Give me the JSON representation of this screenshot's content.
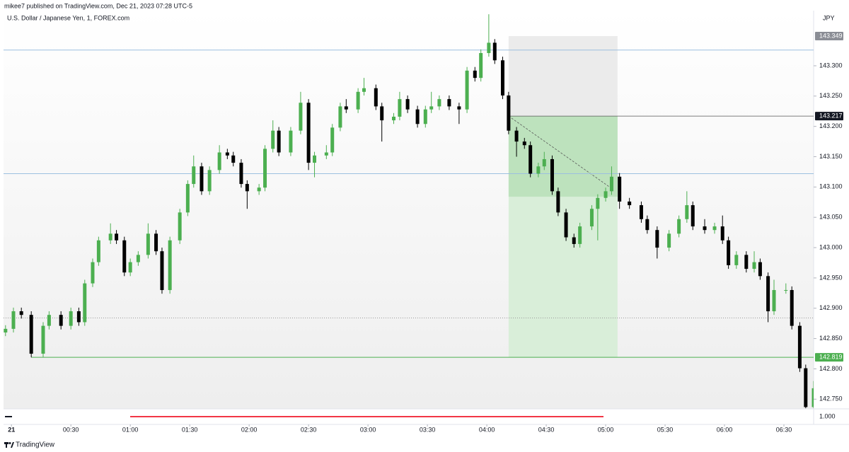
{
  "header": {
    "publisher": "mikee7 published on TradingView.com, Dec 21, 2023 07:28 UTC-5",
    "footer_brand": "TradingView"
  },
  "chart_data": {
    "type": "candlestick",
    "symbol": "U.S. Dollar / Japanese Yen, 1, FOREX.com",
    "currency": "JPY",
    "up_color": "#4caf50",
    "down_color": "#000000",
    "x": [
      -3,
      1,
      5,
      10,
      16,
      19,
      25,
      30,
      34,
      37,
      41,
      44,
      50,
      53,
      57,
      60,
      64,
      69,
      73,
      76,
      80,
      85,
      89,
      92,
      96,
      100,
      105,
      109,
      112,
      116,
      119,
      125,
      128,
      132,
      135,
      141,
      146,
      150,
      153,
      159,
      162,
      166,
      169,
      175,
      178,
      184,
      187,
      193,
      196,
      200,
      205,
      209,
      212,
      216,
      221,
      226,
      230,
      234,
      237,
      241,
      244,
      248,
      251,
      255,
      259,
      262,
      266,
      269,
      273,
      276,
      280,
      284,
      287,
      293,
      296,
      300,
      303,
      307,
      312,
      318,
      321,
      326,
      332,
      337,
      341,
      344,
      350,
      355,
      359,
      362,
      366,
      371,
      375,
      378,
      382,
      385,
      391,
      394,
      398,
      401,
      405
    ],
    "open": [
      142.86,
      142.866,
      142.895,
      142.889,
      142.825,
      142.871,
      142.889,
      142.871,
      142.895,
      142.877,
      142.941,
      142.976,
      143.012,
      143.023,
      143.012,
      142.959,
      142.976,
      142.988,
      143.023,
      142.994,
      142.93,
      143.012,
      143.058,
      143.105,
      143.134,
      143.093,
      143.128,
      143.157,
      143.152,
      143.14,
      143.105,
      143.093,
      143.099,
      143.163,
      143.193,
      143.157,
      143.193,
      143.239,
      143.14,
      143.152,
      143.157,
      143.198,
      143.233,
      143.228,
      143.257,
      143.263,
      143.233,
      143.21,
      143.216,
      143.245,
      143.228,
      143.204,
      143.228,
      143.233,
      143.245,
      143.233,
      143.228,
      143.292,
      143.28,
      143.321,
      143.338,
      143.309,
      143.251,
      143.193,
      143.175,
      143.169,
      143.122,
      143.134,
      143.146,
      143.093,
      143.058,
      143.017,
      143.006,
      143.035,
      143.064,
      143.082,
      143.093,
      143.117,
      143.076,
      143.07,
      143.047,
      143.029,
      143.0,
      143.023,
      143.047,
      143.07,
      143.035,
      143.029,
      143.035,
      143.012,
      142.971,
      142.988,
      142.965,
      142.976,
      142.953,
      142.895,
      142.93,
      142.93,
      142.871,
      142.801,
      142.737
    ],
    "high": [
      142.872,
      142.901,
      142.901,
      142.895,
      142.877,
      142.895,
      142.895,
      142.901,
      142.901,
      142.947,
      142.982,
      143.018,
      143.04,
      143.029,
      143.018,
      142.982,
      142.994,
      143.04,
      143.029,
      143.0,
      143.018,
      143.064,
      143.111,
      143.152,
      143.14,
      143.134,
      143.169,
      143.163,
      143.158,
      143.146,
      143.111,
      143.105,
      143.169,
      143.21,
      143.199,
      143.199,
      143.257,
      143.245,
      143.158,
      143.169,
      143.204,
      143.239,
      143.245,
      143.263,
      143.28,
      143.269,
      143.239,
      143.222,
      143.257,
      143.251,
      143.234,
      143.234,
      143.257,
      143.251,
      143.251,
      143.239,
      143.298,
      143.298,
      143.327,
      143.385,
      143.344,
      143.315,
      143.257,
      143.199,
      143.181,
      143.175,
      143.14,
      143.158,
      143.152,
      143.099,
      143.064,
      143.023,
      143.041,
      143.07,
      143.088,
      143.099,
      143.134,
      143.123,
      143.082,
      143.076,
      143.053,
      143.035,
      143.029,
      143.053,
      143.093,
      143.076,
      143.047,
      143.041,
      143.053,
      143.018,
      142.994,
      142.994,
      142.994,
      142.982,
      142.959,
      142.947,
      142.941,
      142.936,
      142.877,
      142.807,
      142.78
    ],
    "low": [
      142.854,
      142.86,
      142.883,
      142.819,
      142.819,
      142.865,
      142.865,
      142.865,
      142.871,
      142.871,
      142.935,
      142.97,
      143.006,
      143.006,
      142.953,
      142.953,
      142.97,
      142.982,
      142.988,
      142.924,
      142.924,
      143.006,
      143.052,
      143.099,
      143.087,
      143.087,
      143.122,
      143.146,
      143.134,
      143.099,
      143.064,
      143.087,
      143.093,
      143.157,
      143.151,
      143.151,
      143.187,
      143.128,
      143.116,
      143.146,
      143.151,
      143.192,
      143.222,
      143.222,
      143.251,
      143.227,
      143.175,
      143.204,
      143.21,
      143.222,
      143.198,
      143.198,
      143.222,
      143.227,
      143.227,
      143.204,
      143.222,
      143.274,
      143.274,
      143.315,
      143.303,
      143.245,
      143.187,
      143.15,
      143.163,
      143.116,
      143.116,
      143.128,
      143.087,
      143.052,
      143.011,
      143.0,
      143.0,
      143.029,
      143.012,
      143.076,
      143.087,
      143.064,
      143.064,
      143.041,
      143.023,
      142.982,
      142.994,
      143.017,
      143.041,
      143.029,
      143.023,
      143.023,
      143.006,
      142.965,
      142.965,
      142.959,
      142.959,
      142.947,
      142.877,
      142.889,
      142.924,
      142.865,
      142.795,
      142.735,
      142.735
    ],
    "close": [
      142.866,
      142.895,
      142.889,
      142.825,
      142.871,
      142.889,
      142.871,
      142.895,
      142.877,
      142.941,
      142.976,
      143.012,
      143.023,
      143.012,
      142.959,
      142.976,
      142.988,
      143.023,
      142.994,
      142.93,
      143.012,
      143.058,
      143.105,
      143.134,
      143.093,
      143.128,
      143.157,
      143.152,
      143.14,
      143.105,
      143.093,
      143.099,
      143.163,
      143.193,
      143.157,
      143.193,
      143.239,
      143.14,
      143.152,
      143.157,
      143.198,
      143.233,
      143.228,
      143.257,
      143.263,
      143.233,
      143.21,
      143.216,
      143.245,
      143.228,
      143.204,
      143.228,
      143.233,
      143.245,
      143.233,
      143.228,
      143.292,
      143.28,
      143.321,
      143.338,
      143.309,
      143.251,
      143.193,
      143.175,
      143.169,
      143.122,
      143.134,
      143.146,
      143.093,
      143.058,
      143.017,
      143.006,
      143.035,
      143.064,
      143.082,
      143.093,
      143.117,
      143.076,
      143.07,
      143.047,
      143.029,
      143.0,
      143.023,
      143.047,
      143.07,
      143.035,
      143.029,
      143.035,
      143.012,
      142.971,
      142.988,
      142.965,
      142.976,
      142.953,
      142.895,
      142.93,
      142.93,
      142.871,
      142.801,
      142.737,
      142.768
    ],
    "xlim": [
      -4,
      405
    ],
    "ylim": [
      142.734,
      143.391
    ],
    "xticks": [
      {
        "value": 0,
        "label": "21"
      },
      {
        "value": 30,
        "label": "00:30"
      },
      {
        "value": 60,
        "label": "01:00"
      },
      {
        "value": 90,
        "label": "01:30"
      },
      {
        "value": 120,
        "label": "02:00"
      },
      {
        "value": 150,
        "label": "02:30"
      },
      {
        "value": 180,
        "label": "03:00"
      },
      {
        "value": 210,
        "label": "03:30"
      },
      {
        "value": 240,
        "label": "04:00"
      },
      {
        "value": 270,
        "label": "04:30"
      },
      {
        "value": 300,
        "label": "05:00"
      },
      {
        "value": 330,
        "label": "05:30"
      },
      {
        "value": 360,
        "label": "06:00"
      },
      {
        "value": 390,
        "label": "06:30"
      }
    ],
    "yticks": [
      {
        "value": 142.75,
        "label": "142.750"
      },
      {
        "value": 142.8,
        "label": "142.800"
      },
      {
        "value": 142.85,
        "label": "142.850"
      },
      {
        "value": 142.9,
        "label": "142.900"
      },
      {
        "value": 142.95,
        "label": "142.950"
      },
      {
        "value": 143.0,
        "label": "143.000"
      },
      {
        "value": 143.05,
        "label": "143.050"
      },
      {
        "value": 143.1,
        "label": "143.100"
      },
      {
        "value": 143.15,
        "label": "143.150"
      },
      {
        "value": 143.2,
        "label": "143.200"
      },
      {
        "value": 143.25,
        "label": "143.250"
      },
      {
        "value": 143.3,
        "label": "143.300"
      }
    ],
    "horizontal_lines": [
      {
        "value": 143.326,
        "color": "#9cc0e0",
        "style": "solid",
        "x_start": -4
      },
      {
        "value": 143.122,
        "color": "#9cc0e0",
        "style": "solid",
        "x_start": -4
      },
      {
        "value": 142.884,
        "color": "#9a9a9a",
        "style": "dotted",
        "x_start": -4
      },
      {
        "value": 142.819,
        "color": "#4caf50",
        "style": "solid",
        "x_start": 10
      }
    ],
    "position": {
      "x_start": 251,
      "x_end": 306,
      "entry": 143.217,
      "stop": 143.349,
      "target": 142.819,
      "current": 143.084,
      "trend_x": [
        251,
        302
      ],
      "trend_y": [
        143.217,
        143.1
      ]
    },
    "price_badges": [
      {
        "value": 143.349,
        "color": "#8a8d95"
      },
      {
        "value": 143.217,
        "color": "#131722"
      },
      {
        "value": 142.819,
        "color": "#4caf50"
      }
    ],
    "indicator_tick": {
      "value": 1,
      "label": "1.000"
    }
  }
}
